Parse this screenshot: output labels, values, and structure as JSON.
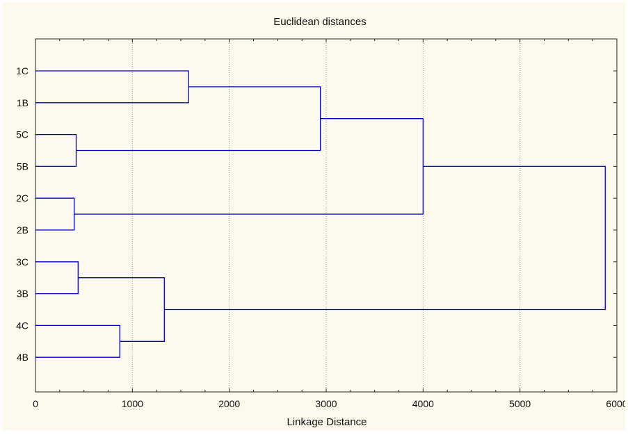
{
  "chart_data": {
    "type": "dendrogram",
    "title": "Euclidean distances",
    "xlabel": "Linkage Distance",
    "xlim": [
      0,
      6000
    ],
    "x_ticks": [
      0,
      1000,
      2000,
      3000,
      4000,
      5000,
      6000
    ],
    "x_tick_labels": [
      "0",
      "1000",
      "2000",
      "3000",
      "4000",
      "5000",
      "6000"
    ],
    "leaves": [
      "1C",
      "1B",
      "5C",
      "5B",
      "2C",
      "2B",
      "3C",
      "3B",
      "4C",
      "4B"
    ],
    "merges": [
      {
        "left": "1C",
        "right": "1B",
        "distance": 1580
      },
      {
        "left": "5C",
        "right": "5B",
        "distance": 420
      },
      {
        "left": "2C",
        "right": "2B",
        "distance": 400
      },
      {
        "left": "3C",
        "right": "3B",
        "distance": 440
      },
      {
        "left": "4C",
        "right": "4B",
        "distance": 870
      },
      {
        "left": "3C-3B",
        "right": "4C-4B",
        "distance": 1330
      },
      {
        "left": "1C-1B",
        "right": "5C-5B",
        "distance": 2940
      },
      {
        "left": "1C-1B-5C-5B",
        "right": "2C-2B",
        "distance": 4000
      },
      {
        "left": "1C-1B-5C-5B-2C-2B",
        "right": "3C-3B-4C-4B",
        "distance": 5880
      }
    ],
    "grid": "vertical dotted",
    "line_color": "#0000cc"
  }
}
